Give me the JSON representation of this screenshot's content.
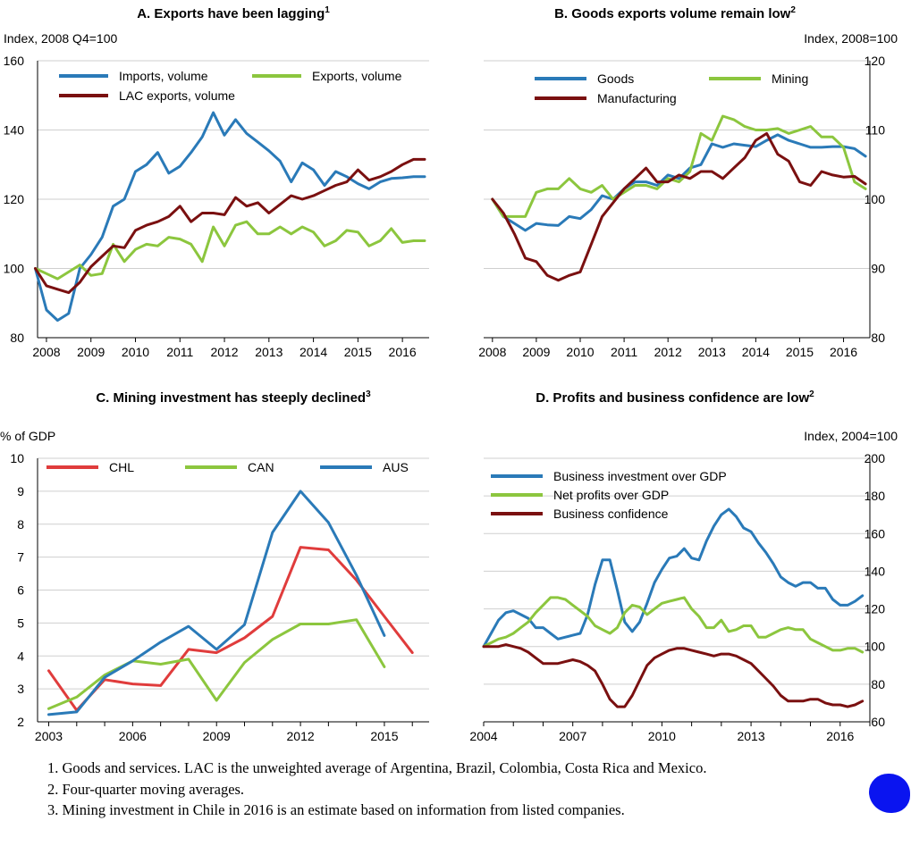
{
  "chart_data": [
    {
      "id": "A",
      "type": "line",
      "title": "A. Exports have been lagging",
      "title_sup": "1",
      "ylabel": "Index, 2008 Q4=100",
      "ylim": [
        80,
        160
      ],
      "yticks": [
        80,
        100,
        120,
        140,
        160
      ],
      "xlim": [
        2007.8,
        2016.6
      ],
      "xticks": [
        2008,
        2009,
        2010,
        2011,
        2012,
        2013,
        2014,
        2015,
        2016
      ],
      "grid": true,
      "legend_position": "top",
      "series": [
        {
          "name": "Imports, volume",
          "color": "#2a7ab8",
          "x": [
            2007.75,
            2008.0,
            2008.25,
            2008.5,
            2008.75,
            2009.0,
            2009.25,
            2009.5,
            2009.75,
            2010.0,
            2010.25,
            2010.5,
            2010.75,
            2011.0,
            2011.25,
            2011.5,
            2011.75,
            2012.0,
            2012.25,
            2012.5,
            2012.75,
            2013.0,
            2013.25,
            2013.5,
            2013.75,
            2014.0,
            2014.25,
            2014.5,
            2014.75,
            2015.0,
            2015.25,
            2015.5,
            2015.75,
            2016.0,
            2016.25,
            2016.5
          ],
          "y": [
            100,
            88,
            85,
            87,
            100,
            104,
            109,
            118,
            120,
            128,
            130,
            133.5,
            127.5,
            129.5,
            133.5,
            138,
            145,
            138.5,
            143,
            139,
            136.5,
            134,
            131,
            125,
            130.5,
            128.5,
            124,
            128,
            126.5,
            124.5,
            123,
            125,
            126,
            126.2,
            126.5,
            126.5
          ]
        },
        {
          "name": "Exports, volume",
          "color": "#8cc63e",
          "x": [
            2007.75,
            2008.0,
            2008.25,
            2008.5,
            2008.75,
            2009.0,
            2009.25,
            2009.5,
            2009.75,
            2010.0,
            2010.25,
            2010.5,
            2010.75,
            2011.0,
            2011.25,
            2011.5,
            2011.75,
            2012.0,
            2012.25,
            2012.5,
            2012.75,
            2013.0,
            2013.25,
            2013.5,
            2013.75,
            2014.0,
            2014.25,
            2014.5,
            2014.75,
            2015.0,
            2015.25,
            2015.5,
            2015.75,
            2016.0,
            2016.25,
            2016.5
          ],
          "y": [
            100,
            98.5,
            97,
            99,
            101,
            98,
            98.5,
            107,
            102,
            105.5,
            107,
            106.5,
            109,
            108.5,
            107,
            102,
            112,
            106.5,
            112.5,
            113.5,
            110,
            110,
            112,
            110,
            112,
            110.5,
            106.5,
            108,
            111,
            110.5,
            106.5,
            108,
            111.5,
            107.5,
            108,
            108
          ]
        },
        {
          "name": "LAC exports, volume",
          "color": "#7a1010",
          "x": [
            2007.75,
            2008.0,
            2008.25,
            2008.5,
            2008.75,
            2009.0,
            2009.25,
            2009.5,
            2009.75,
            2010.0,
            2010.25,
            2010.5,
            2010.75,
            2011.0,
            2011.25,
            2011.5,
            2011.75,
            2012.0,
            2012.25,
            2012.5,
            2012.75,
            2013.0,
            2013.25,
            2013.5,
            2013.75,
            2014.0,
            2014.25,
            2014.5,
            2014.75,
            2015.0,
            2015.25,
            2015.5,
            2015.75,
            2016.0,
            2016.25,
            2016.5
          ],
          "y": [
            100,
            95,
            94,
            93,
            96,
            100.5,
            103.5,
            106.5,
            106,
            111,
            112.5,
            113.5,
            115,
            118,
            113.5,
            116,
            116,
            115.5,
            120.5,
            118,
            119,
            116,
            118.5,
            121,
            120,
            121,
            122.5,
            124,
            125,
            128.5,
            125.5,
            126.5,
            128,
            130,
            131.5,
            131.5
          ]
        }
      ]
    },
    {
      "id": "B",
      "type": "line",
      "title": "B. Goods exports volume remain low",
      "title_sup": "2",
      "ylabel": "Index, 2008=100",
      "ylim": [
        80,
        120
      ],
      "yticks": [
        80,
        90,
        100,
        110,
        120
      ],
      "xlim": [
        2007.8,
        2016.6
      ],
      "xticks": [
        2008,
        2009,
        2010,
        2011,
        2012,
        2013,
        2014,
        2015,
        2016
      ],
      "grid": true,
      "legend_position": "top",
      "series": [
        {
          "name": "Goods",
          "color": "#2a7ab8",
          "x": [
            2008.0,
            2008.25,
            2008.5,
            2008.75,
            2009.0,
            2009.25,
            2009.5,
            2009.75,
            2010.0,
            2010.25,
            2010.5,
            2010.75,
            2011.0,
            2011.25,
            2011.5,
            2011.75,
            2012.0,
            2012.25,
            2012.5,
            2012.75,
            2013.0,
            2013.25,
            2013.5,
            2013.75,
            2014.0,
            2014.25,
            2014.5,
            2014.75,
            2015.0,
            2015.25,
            2015.5,
            2015.75,
            2016.0,
            2016.25,
            2016.5
          ],
          "y": [
            100,
            97.5,
            96.5,
            95.5,
            96.5,
            96.3,
            96.2,
            97.5,
            97.2,
            98.5,
            100.5,
            100,
            101.5,
            102.5,
            102.5,
            102,
            103.5,
            103,
            104.5,
            105,
            108,
            107.5,
            108,
            107.8,
            107.6,
            108.5,
            109.3,
            108.5,
            108,
            107.5,
            107.5,
            107.6,
            107.6,
            107.3,
            106.2
          ]
        },
        {
          "name": "Mining",
          "color": "#8cc63e",
          "x": [
            2008.0,
            2008.25,
            2008.5,
            2008.75,
            2009.0,
            2009.25,
            2009.5,
            2009.75,
            2010.0,
            2010.25,
            2010.5,
            2010.75,
            2011.0,
            2011.25,
            2011.5,
            2011.75,
            2012.0,
            2012.25,
            2012.5,
            2012.75,
            2013.0,
            2013.25,
            2013.5,
            2013.75,
            2014.0,
            2014.25,
            2014.5,
            2014.75,
            2015.0,
            2015.25,
            2015.5,
            2015.75,
            2016.0,
            2016.25,
            2016.5
          ],
          "y": [
            100,
            97.5,
            97.5,
            97.5,
            101,
            101.5,
            101.5,
            103,
            101.5,
            101,
            102,
            100,
            101,
            102,
            102,
            101.5,
            103,
            102.5,
            104,
            109.5,
            108.5,
            112,
            111.5,
            110.5,
            110,
            110,
            110.2,
            109.5,
            110,
            110.5,
            109,
            109,
            107.5,
            102.5,
            101.5
          ]
        },
        {
          "name": "Manufacturing",
          "color": "#7a1010",
          "x": [
            2008.0,
            2008.25,
            2008.5,
            2008.75,
            2009.0,
            2009.25,
            2009.5,
            2009.75,
            2010.0,
            2010.25,
            2010.5,
            2010.75,
            2011.0,
            2011.25,
            2011.5,
            2011.75,
            2012.0,
            2012.25,
            2012.5,
            2012.75,
            2013.0,
            2013.25,
            2013.5,
            2013.75,
            2014.0,
            2014.25,
            2014.5,
            2014.75,
            2015.0,
            2015.25,
            2015.5,
            2015.75,
            2016.0,
            2016.25,
            2016.5
          ],
          "y": [
            100,
            98,
            95,
            91.5,
            91,
            89,
            88.3,
            89,
            89.5,
            93.5,
            97.5,
            99.5,
            101.5,
            103,
            104.5,
            102.5,
            102.5,
            103.5,
            103,
            104,
            104,
            103,
            104.5,
            106,
            108.5,
            109.5,
            106.5,
            105.5,
            102.5,
            102,
            104,
            103.5,
            103.2,
            103.3,
            102.2
          ]
        }
      ]
    },
    {
      "id": "C",
      "type": "line",
      "title": "C. Mining investment has steeply declined",
      "title_sup": "3",
      "ylabel": "% of GDP",
      "ylim": [
        2,
        10
      ],
      "yticks": [
        2,
        3,
        4,
        5,
        6,
        7,
        8,
        9,
        10
      ],
      "xlim": [
        2002.6,
        2016.6
      ],
      "xticks": [
        2003,
        2006,
        2009,
        2012,
        2015
      ],
      "grid": true,
      "legend_position": "top",
      "series": [
        {
          "name": "CHL",
          "color": "#e03c3c",
          "x": [
            2003,
            2004,
            2005,
            2006,
            2007,
            2008,
            2009,
            2010,
            2011,
            2012,
            2013,
            2014,
            2015,
            2016
          ],
          "y": [
            3.55,
            2.35,
            3.28,
            3.15,
            3.1,
            4.2,
            4.1,
            4.55,
            5.2,
            7.3,
            7.22,
            6.3,
            5.2,
            4.1
          ]
        },
        {
          "name": "CAN",
          "color": "#8cc63e",
          "x": [
            2003,
            2004,
            2005,
            2006,
            2007,
            2008,
            2009,
            2010,
            2011,
            2012,
            2013,
            2014,
            2015
          ],
          "y": [
            2.4,
            2.75,
            3.42,
            3.85,
            3.75,
            3.9,
            2.65,
            3.8,
            4.5,
            4.97,
            4.97,
            5.1,
            3.67
          ]
        },
        {
          "name": "AUS",
          "color": "#2a7ab8",
          "x": [
            2003,
            2004,
            2005,
            2006,
            2007,
            2008,
            2009,
            2010,
            2011,
            2012,
            2013,
            2014,
            2015
          ],
          "y": [
            2.22,
            2.3,
            3.35,
            3.85,
            4.42,
            4.9,
            4.2,
            4.95,
            7.75,
            9.0,
            8.05,
            6.45,
            4.62
          ]
        }
      ]
    },
    {
      "id": "D",
      "type": "line",
      "title": "D. Profits and business confidence are low",
      "title_sup": "2",
      "ylabel": "Index, 2004=100",
      "ylim": [
        60,
        200
      ],
      "yticks": [
        60,
        80,
        100,
        120,
        140,
        160,
        180,
        200
      ],
      "xlim": [
        2004.0,
        2017.0
      ],
      "xticks": [
        2004,
        2007,
        2010,
        2013,
        2016
      ],
      "grid": true,
      "legend_position": "top-left",
      "series": [
        {
          "name": "Business investment over GDP",
          "color": "#2a7ab8",
          "x": [
            2004.0,
            2004.25,
            2004.5,
            2004.75,
            2005.0,
            2005.25,
            2005.5,
            2005.75,
            2006.0,
            2006.25,
            2006.5,
            2006.75,
            2007.0,
            2007.25,
            2007.5,
            2007.75,
            2008.0,
            2008.25,
            2008.5,
            2008.75,
            2009.0,
            2009.25,
            2009.5,
            2009.75,
            2010.0,
            2010.25,
            2010.5,
            2010.75,
            2011.0,
            2011.25,
            2011.5,
            2011.75,
            2012.0,
            2012.25,
            2012.5,
            2012.75,
            2013.0,
            2013.25,
            2013.5,
            2013.75,
            2014.0,
            2014.25,
            2014.5,
            2014.75,
            2015.0,
            2015.25,
            2015.5,
            2015.75,
            2016.0,
            2016.25,
            2016.5,
            2016.75
          ],
          "y": [
            100,
            107,
            114,
            118,
            119,
            117,
            115,
            110,
            110,
            107,
            104,
            105,
            106,
            107,
            117,
            133,
            146,
            146,
            130,
            113,
            108,
            113,
            123,
            134,
            141,
            147,
            148,
            152,
            147,
            146,
            156,
            164,
            170,
            173,
            169,
            163,
            161,
            155,
            150,
            144,
            137,
            134,
            132,
            134,
            134,
            131,
            131,
            125,
            122,
            122,
            124,
            127
          ]
        },
        {
          "name": "Net profits over GDP",
          "color": "#8cc63e",
          "x": [
            2004.0,
            2004.25,
            2004.5,
            2004.75,
            2005.0,
            2005.25,
            2005.5,
            2005.75,
            2006.0,
            2006.25,
            2006.5,
            2006.75,
            2007.0,
            2007.25,
            2007.5,
            2007.75,
            2008.0,
            2008.25,
            2008.5,
            2008.75,
            2009.0,
            2009.25,
            2009.5,
            2009.75,
            2010.0,
            2010.25,
            2010.5,
            2010.75,
            2011.0,
            2011.25,
            2011.5,
            2011.75,
            2012.0,
            2012.25,
            2012.5,
            2012.75,
            2013.0,
            2013.25,
            2013.5,
            2013.75,
            2014.0,
            2014.25,
            2014.5,
            2014.75,
            2015.0,
            2015.25,
            2015.5,
            2015.75,
            2016.0,
            2016.25,
            2016.5,
            2016.75
          ],
          "y": [
            100,
            102,
            104,
            105,
            107,
            110,
            113,
            118,
            122,
            126,
            126,
            125,
            122,
            119,
            116,
            111,
            109,
            107,
            110,
            118,
            122,
            121,
            117,
            120,
            123,
            124,
            125,
            126,
            120,
            116,
            110,
            110,
            114,
            108,
            109,
            111,
            111,
            105,
            105,
            107,
            109,
            110,
            109,
            109,
            104,
            102,
            100,
            98,
            98,
            99,
            99,
            97
          ]
        },
        {
          "name": "Business confidence",
          "color": "#7a1010",
          "x": [
            2004.0,
            2004.25,
            2004.5,
            2004.75,
            2005.0,
            2005.25,
            2005.5,
            2005.75,
            2006.0,
            2006.25,
            2006.5,
            2006.75,
            2007.0,
            2007.25,
            2007.5,
            2007.75,
            2008.0,
            2008.25,
            2008.5,
            2008.75,
            2009.0,
            2009.25,
            2009.5,
            2009.75,
            2010.0,
            2010.25,
            2010.5,
            2010.75,
            2011.0,
            2011.25,
            2011.5,
            2011.75,
            2012.0,
            2012.25,
            2012.5,
            2012.75,
            2013.0,
            2013.25,
            2013.5,
            2013.75,
            2014.0,
            2014.25,
            2014.5,
            2014.75,
            2015.0,
            2015.25,
            2015.5,
            2015.75,
            2016.0,
            2016.25,
            2016.5,
            2016.75
          ],
          "y": [
            100,
            100,
            100,
            101,
            100,
            99,
            97,
            94,
            91,
            91,
            91,
            92,
            93,
            92,
            90,
            87,
            80,
            72,
            68,
            68,
            74,
            82,
            90,
            94,
            96,
            98,
            99,
            99,
            98,
            97,
            96,
            95,
            96,
            96,
            95,
            93,
            91,
            87,
            83,
            79,
            74,
            71,
            71,
            71,
            72,
            72,
            70,
            69,
            69,
            68,
            69,
            71
          ]
        }
      ]
    }
  ],
  "notes": [
    "1. Goods and services. LAC is the unweighted average of Argentina, Brazil, Colombia, Costa Rica and Mexico.",
    "2. Four-quarter moving averages.",
    "3. Mining investment in Chile in 2016 is an estimate based on information from listed companies."
  ],
  "colors": {
    "blue": "#2a7ab8",
    "green": "#8cc63e",
    "dark_red": "#7a1010",
    "red": "#e03c3c",
    "grid": "#cfcfcf",
    "ink_blob": "#0a14f0"
  }
}
